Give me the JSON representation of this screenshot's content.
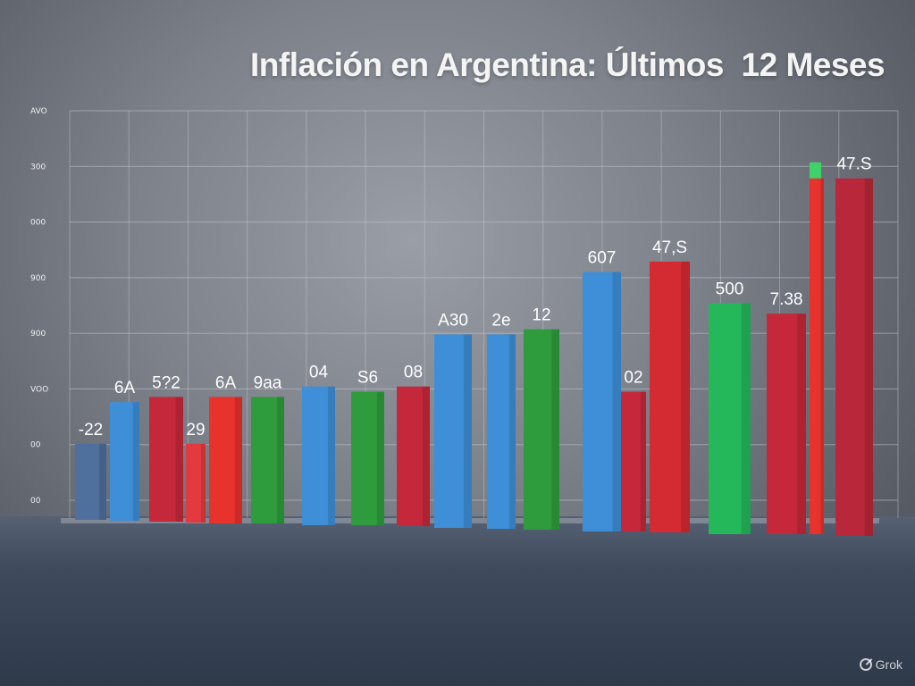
{
  "chart_data": {
    "type": "bar",
    "title": "Inflación en Argentina: Últimos  12 Meses",
    "xlabel": "",
    "ylabel": "",
    "y_tick_labels": [
      "AVO",
      "300",
      "000",
      "900",
      "900",
      "VOO",
      "00",
      "00"
    ],
    "ylim": [
      0,
      8
    ],
    "grid": true,
    "legend": "none",
    "bars": [
      {
        "value": 1.6,
        "label": "-22",
        "color": "#4f6f9c"
      },
      {
        "value": 2.4,
        "label": "6A",
        "color": "#3e8fd8"
      },
      {
        "value": 2.5,
        "label": "5?2",
        "color": "#c5283a"
      },
      {
        "value": 1.6,
        "label": "29",
        "color": "#e23a3e"
      },
      {
        "value": 2.5,
        "label": "6A",
        "color": "#e8322c"
      },
      {
        "value": 2.5,
        "label": "9aa",
        "color": "#2e9c3c"
      },
      {
        "value": 2.7,
        "label": "04",
        "color": "#3e8fd8"
      },
      {
        "value": 2.6,
        "label": "S6",
        "color": "#2e9c3c"
      },
      {
        "value": 2.7,
        "label": "08",
        "color": "#c5283a"
      },
      {
        "value": 3.7,
        "label": "A30",
        "color": "#3e8fd8"
      },
      {
        "value": 3.7,
        "label": "2e",
        "color": "#3e8fd8"
      },
      {
        "value": 3.8,
        "label": "12",
        "color": "#2e9c3c"
      },
      {
        "value": 4.9,
        "label": "607",
        "color": "#3e8fd8"
      },
      {
        "value": 2.6,
        "label": "02",
        "color": "#c5283a"
      },
      {
        "value": 5.1,
        "label": "47,S",
        "color": "#d42a32"
      },
      {
        "value": 4.3,
        "label": "500",
        "color": "#25b85a"
      },
      {
        "value": 4.1,
        "label": "7.38",
        "color": "#c5283a"
      },
      {
        "value": 6.7,
        "label": "",
        "color": "#e8322c"
      },
      {
        "value": 6.7,
        "label": "47.S",
        "color": "#b8283a"
      }
    ]
  },
  "watermark": "Grok",
  "colors": {
    "background": "#7c818a",
    "floor": "#3f4b5d",
    "grid": "#c7cad0"
  }
}
